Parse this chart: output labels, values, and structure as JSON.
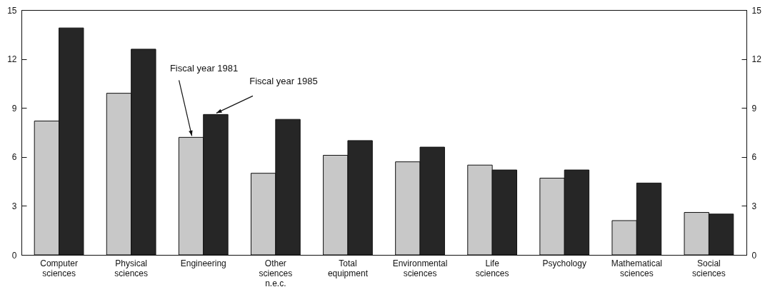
{
  "chart_data": {
    "type": "bar",
    "categories": [
      "Computer sciences",
      "Physical sciences",
      "Engineering",
      "Other sciences n.e.c.",
      "Total equipment",
      "Environmental sciences",
      "Life sciences",
      "Psychology",
      "Mathematical sciences",
      "Social sciences"
    ],
    "series": [
      {
        "name": "Fiscal year 1981",
        "color": "#c8c8c8",
        "values": [
          8.2,
          9.9,
          7.2,
          5.0,
          6.1,
          5.7,
          5.5,
          4.7,
          2.1,
          2.6
        ]
      },
      {
        "name": "Fiscal year 1985",
        "color": "#262626",
        "values": [
          13.9,
          12.6,
          8.6,
          8.3,
          7.0,
          6.6,
          5.2,
          5.2,
          4.4,
          2.5
        ]
      }
    ],
    "ylim": [
      0,
      15
    ],
    "yticks": [
      0,
      3,
      6,
      9,
      12,
      15
    ],
    "y2lim": [
      0,
      15
    ],
    "y2ticks": [
      0,
      3,
      6,
      9,
      12,
      15
    ],
    "grid": false
  }
}
